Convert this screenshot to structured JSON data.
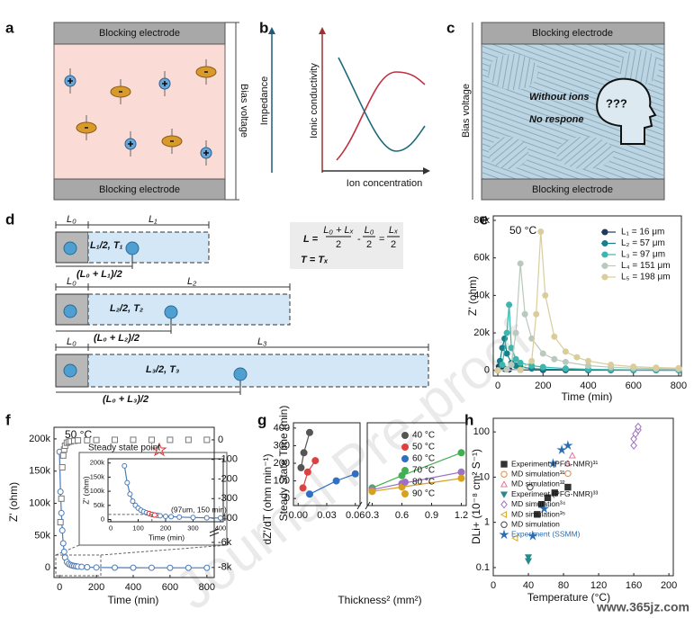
{
  "panel_labels": [
    "a",
    "b",
    "c",
    "d",
    "e",
    "f",
    "g",
    "h"
  ],
  "a": {
    "top": "Blocking electrode",
    "bottom": "Blocking electrode",
    "side": "Bias voltage"
  },
  "b": {
    "y_outer": "Impedance",
    "y_inner": "Ionic conductivity",
    "x": "Ion concentration"
  },
  "c": {
    "top": "Blocking electrode",
    "bottom": "Blocking electrode",
    "side": "Bias voltage",
    "note1": "Without ions",
    "note2": "No respone",
    "thought": "???"
  },
  "d": {
    "rows": [
      {
        "L0": "L₀",
        "L": "L₁",
        "point": "L₁/2, T₁",
        "mid": "(L₀ + L₁)/2"
      },
      {
        "L0": "L₀",
        "L": "L₂",
        "point": "L₂/2, T₂",
        "mid": "(L₀ + L₂)/2"
      },
      {
        "L0": "L₀",
        "L": "L₃",
        "point": "L₃/2, T₃",
        "mid": "(L₀ + L₃)/2"
      }
    ],
    "formula": [
      "L =",
      "L₀ + Lₓ",
      "2",
      "-",
      "L₀",
      "2",
      "=",
      "Lₓ",
      "2"
    ],
    "formula2": "T = Tₓ"
  },
  "chart_data": [
    {
      "type": "line",
      "annotations": [
        "50 °C"
      ],
      "xlabel": "Time (min)",
      "ylabel": "Z' (ohm)",
      "xlim": [
        -20,
        812
      ],
      "ylim": [
        -3000,
        82400
      ],
      "xticks": [
        0,
        200,
        400,
        600,
        800
      ],
      "yticks": [
        0,
        {
          "value": 20000,
          "label": "20k"
        },
        {
          "value": 40000,
          "label": "40k"
        },
        {
          "value": 60000,
          "label": "60k"
        },
        {
          "value": 80000,
          "label": "80k"
        }
      ],
      "legend": "upper right",
      "series": [
        {
          "name": "L₁ = 16 μm",
          "color": "#1e3a5f",
          "x": [
            0,
            5,
            10,
            15,
            20,
            30,
            50,
            100,
            200,
            300,
            400,
            500,
            600,
            700,
            800
          ],
          "values": [
            0,
            2000,
            5000,
            3000,
            1500,
            800,
            500,
            300,
            200,
            150,
            100,
            100,
            100,
            100,
            100
          ]
        },
        {
          "name": "L₂ = 57 μm",
          "color": "#17808a",
          "x": [
            0,
            10,
            20,
            30,
            40,
            60,
            80,
            100,
            150,
            200,
            300,
            400,
            500,
            600,
            700,
            800
          ],
          "values": [
            0,
            5000,
            12000,
            17000,
            9000,
            4000,
            2500,
            1800,
            1000,
            700,
            400,
            300,
            200,
            150,
            100,
            100
          ]
        },
        {
          "name": "L₃ = 97 μm",
          "color": "#3cb7ae",
          "x": [
            0,
            20,
            40,
            50,
            60,
            80,
            100,
            150,
            200,
            300,
            400,
            500,
            600,
            700,
            800
          ],
          "values": [
            0,
            3000,
            20000,
            35000,
            12000,
            6000,
            4000,
            2500,
            1800,
            1000,
            600,
            400,
            300,
            200,
            150
          ]
        },
        {
          "name": "L₄ = 151 μm",
          "color": "#b9c9bd",
          "x": [
            0,
            40,
            60,
            80,
            100,
            120,
            150,
            200,
            250,
            300,
            400,
            500,
            600,
            700,
            800
          ],
          "values": [
            0,
            500,
            3000,
            20000,
            57000,
            30000,
            17000,
            9000,
            6000,
            4500,
            2500,
            1700,
            1200,
            900,
            700
          ]
        },
        {
          "name": "L₅ = 198 μm",
          "color": "#d9cd9c",
          "x": [
            0,
            100,
            150,
            170,
            190,
            210,
            250,
            300,
            350,
            400,
            500,
            600,
            700,
            800
          ],
          "values": [
            0,
            300,
            5000,
            30000,
            74000,
            40000,
            18000,
            10000,
            7000,
            5000,
            3000,
            2000,
            1500,
            1200
          ]
        }
      ]
    },
    {
      "type": "line",
      "annotations": [
        "50 °C",
        "Steady state point"
      ],
      "xlabel": "Time (min)",
      "ylabel": "Z' (ohm)",
      "y2label": "dZ'/dT (ohm min⁻¹)",
      "xlim": [
        -30,
        840
      ],
      "ylim": [
        -15000,
        218000
      ],
      "y2lim": [
        -8800,
        64
      ],
      "y2break": [
        -5000,
        -450
      ],
      "xticks": [
        0,
        200,
        400,
        600,
        800
      ],
      "yticks": [
        0,
        {
          "value": 50000,
          "label": "50k"
        },
        {
          "value": 100000,
          "label": "100k"
        },
        {
          "value": 150000,
          "label": "150k"
        },
        {
          "value": 200000,
          "label": "200k"
        }
      ],
      "y2ticks": [
        0,
        -100,
        -200,
        -300,
        -400,
        {
          "value": -6000,
          "label": "-6k"
        },
        {
          "value": -8000,
          "label": "-8k"
        }
      ],
      "series": [
        {
          "color": "#4a7ab8",
          "marker": "circle",
          "filled": false,
          "line": true,
          "x": [
            0,
            5,
            10,
            15,
            20,
            25,
            30,
            40,
            50,
            60,
            70,
            80,
            90,
            100,
            120,
            150,
            200,
            300,
            400,
            500,
            600,
            700,
            800
          ],
          "values": [
            180000,
            118000,
            85000,
            58000,
            38000,
            25000,
            16000,
            9000,
            6000,
            4500,
            3500,
            3000,
            2500,
            2000,
            1500,
            1000,
            600,
            300,
            200,
            100,
            50,
            20,
            0
          ]
        },
        {
          "color": "#777777",
          "marker": "square",
          "filled": false,
          "line": false,
          "axis": "y2",
          "x": [
            5,
            10,
            15,
            20,
            25,
            30,
            40,
            50,
            60,
            80,
            100,
            150,
            200,
            300,
            400,
            500,
            600,
            700,
            800
          ],
          "values": [
            -420,
            -300,
            -140,
            -80,
            -50,
            -30,
            -15,
            -10,
            -8,
            -5,
            -3,
            -2,
            -1,
            0,
            0,
            0,
            0,
            0,
            0
          ]
        }
      ]
    },
    {
      "type": "line",
      "annotations": [
        "(97um, 150 min)"
      ],
      "xlabel": "Time (min)",
      "ylabel": "Z' (ohm)",
      "xlim": [
        -10,
        410
      ],
      "ylim": [
        -8000,
        215000
      ],
      "xticks": [
        0,
        100,
        200,
        300,
        400
      ],
      "yticks": [
        0,
        {
          "value": 50000,
          "label": "50k"
        },
        {
          "value": 100000,
          "label": "100k"
        },
        {
          "value": 150000,
          "label": "150k"
        },
        {
          "value": 200000,
          "label": "200k"
        }
      ],
      "series": [
        {
          "color": "#4a7ab8",
          "marker": "circle",
          "filled": false,
          "line": true,
          "x": [
            50,
            60,
            70,
            80,
            90,
            100,
            110,
            120,
            130,
            140,
            150,
            160,
            170,
            180,
            200,
            220,
            250,
            300,
            350,
            400
          ],
          "values": [
            190000,
            130000,
            90000,
            65000,
            50000,
            40000,
            33000,
            28000,
            24000,
            21000,
            18000,
            16000,
            14500,
            13000,
            11000,
            10000,
            8500,
            7000,
            6000,
            5500
          ]
        },
        {
          "color": "#e03030",
          "marker": "circle",
          "filled": false,
          "line": false,
          "x": [
            140,
            150,
            160
          ],
          "values": [
            21000,
            18000,
            16000
          ]
        }
      ]
    },
    {
      "type": "line",
      "xlabel": "Thickness² (mm²)",
      "ylabel": "Steady State Time (min)",
      "xlim": [
        -0.005,
        1.25
      ],
      "xbreak": [
        0.065,
        0.25
      ],
      "ylim": [
        -40,
        430
      ],
      "xticks": [
        {
          "value": 0,
          "label": "0.00"
        },
        0.03,
        0.06,
        0.3,
        0.6,
        0.9,
        1.2
      ],
      "yticks": [
        0,
        100,
        200,
        300,
        400
      ],
      "legend": "upper right",
      "series": [
        {
          "name": "40 °C",
          "color": "#555555",
          "marker": "circle",
          "line": true,
          "x": [
            0.003,
            0.006,
            0.012
          ],
          "values": [
            175,
            260,
            375
          ]
        },
        {
          "name": "50 °C",
          "color": "#e04040",
          "marker": "circle",
          "line": true,
          "x": [
            0.005,
            0.01,
            0.018
          ],
          "values": [
            60,
            150,
            215
          ]
        },
        {
          "name": "60 °C",
          "color": "#3070c0",
          "marker": "circle",
          "line": true,
          "x": [
            0.012,
            0.04,
            0.06
          ],
          "values": [
            25,
            100,
            140
          ]
        },
        {
          "name": "70 °C",
          "color": "#40b050",
          "marker": "circle",
          "line": true,
          "x": [
            0.3,
            0.6,
            1.2
          ],
          "values": [
            60,
            130,
            260
          ]
        },
        {
          "name": "80 °C",
          "color": "#a070c8",
          "marker": "circle",
          "line": true,
          "x": [
            0.3,
            0.6,
            1.2
          ],
          "values": [
            50,
            85,
            150
          ]
        },
        {
          "name": "90 °C",
          "color": "#d8a020",
          "marker": "circle",
          "line": true,
          "x": [
            0.3,
            0.6,
            1.2
          ],
          "values": [
            40,
            65,
            115
          ]
        }
      ]
    },
    {
      "type": "scatter",
      "xlabel": "Temperature (°C)",
      "ylabel": "DLi+ (10⁻⁸ cm² S⁻¹)",
      "log_y": true,
      "xlim": [
        0,
        205
      ],
      "ylim": [
        0.066,
        200
      ],
      "xticks": [
        0,
        40,
        80,
        120,
        160,
        200
      ],
      "yticks": [
        0.1,
        1,
        10,
        100
      ],
      "legend": "lower right",
      "series": [
        {
          "name": "Experiment (PFG-NMR)³¹",
          "color": "#333333",
          "marker": "square",
          "filled": true,
          "x": [
            50,
            55,
            62,
            70,
            85
          ],
          "values": [
            1.5,
            2.5,
            3.5,
            4.5,
            6
          ]
        },
        {
          "name": "MD simulation³¹",
          "color": "#e08a3c",
          "marker": "circle",
          "filled": false,
          "x": [
            85
          ],
          "values": [
            12
          ]
        },
        {
          "name": "MD simulation³²",
          "color": "#e07b9a",
          "marker": "triangle",
          "filled": false,
          "x": [
            85,
            90
          ],
          "values": [
            20,
            30
          ]
        },
        {
          "name": "Experiment (PFG-NMR)³³",
          "color": "#2a8a8a",
          "marker": "triangle-down",
          "filled": true,
          "x": [
            40,
            40
          ],
          "values": [
            0.14,
            0.17
          ]
        },
        {
          "name": "MD simulation³⁴",
          "color": "#a070c0",
          "marker": "diamond",
          "filled": false,
          "x": [
            160,
            160,
            162,
            165,
            165
          ],
          "values": [
            50,
            70,
            90,
            110,
            130
          ]
        },
        {
          "name": "MD simulation³⁵",
          "color": "#d8a820",
          "marker": "triangle-left",
          "filled": false,
          "x": [
            25
          ],
          "values": [
            0.45
          ]
        },
        {
          "name": "MD simulation",
          "color": "#444444",
          "marker": "circle",
          "filled": false,
          "x": [
            42
          ],
          "values": [
            6
          ]
        },
        {
          "name": "Experiment (SSMM)",
          "color": "#2a6db5",
          "marker": "star",
          "filled": true,
          "x": [
            45,
            58,
            68,
            78,
            85
          ],
          "values": [
            0.5,
            2,
            20,
            40,
            50
          ]
        }
      ]
    }
  ],
  "watermark": "Journal Pre-proof",
  "site": "www.365jz.com"
}
